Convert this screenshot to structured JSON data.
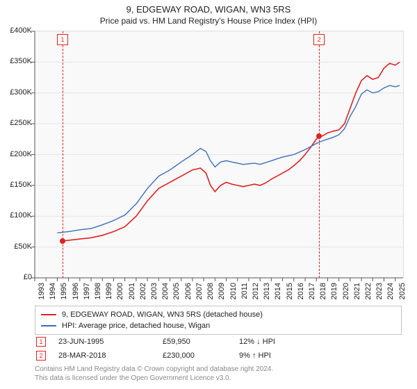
{
  "title": "9, EDGEWAY ROAD, WIGAN, WN3 5RS",
  "subtitle": "Price paid vs. HM Land Registry's House Price Index (HPI)",
  "chart": {
    "type": "line",
    "background_color": "#f9f9f9",
    "grid_color": "#e6e6e6",
    "axis_color": "#555555",
    "x": {
      "min": 1993,
      "max": 2025.7,
      "ticks": [
        1993,
        1994,
        1995,
        1996,
        1997,
        1998,
        1999,
        2000,
        2001,
        2002,
        2003,
        2004,
        2005,
        2006,
        2007,
        2008,
        2009,
        2010,
        2011,
        2012,
        2013,
        2014,
        2015,
        2016,
        2017,
        2018,
        2019,
        2020,
        2021,
        2022,
        2023,
        2024,
        2025
      ],
      "tick_labels": [
        "1993",
        "1994",
        "1995",
        "1996",
        "1997",
        "1998",
        "1999",
        "2000",
        "2001",
        "2002",
        "2003",
        "2004",
        "2005",
        "2006",
        "2007",
        "2008",
        "2009",
        "2010",
        "2011",
        "2012",
        "2013",
        "2014",
        "2015",
        "2016",
        "2017",
        "2018",
        "2019",
        "2020",
        "2021",
        "2022",
        "2023",
        "2024",
        "2025"
      ],
      "label_fontsize": 11
    },
    "y": {
      "min": 0,
      "max": 400000,
      "ticks": [
        0,
        50000,
        100000,
        150000,
        200000,
        250000,
        300000,
        350000,
        400000
      ],
      "tick_labels": [
        "£0",
        "£50K",
        "£100K",
        "£150K",
        "£200K",
        "£250K",
        "£300K",
        "£350K",
        "£400K"
      ],
      "label_fontsize": 11
    },
    "series": [
      {
        "name": "9, EDGEWAY ROAD, WIGAN, WN3 5RS (detached house)",
        "color": "#e02020",
        "line_width": 1.6,
        "points": [
          [
            1995.47,
            59950
          ],
          [
            1996,
            61000
          ],
          [
            1997,
            63000
          ],
          [
            1998,
            65000
          ],
          [
            1999,
            69000
          ],
          [
            2000,
            75000
          ],
          [
            2001,
            83000
          ],
          [
            2002,
            100000
          ],
          [
            2003,
            125000
          ],
          [
            2004,
            145000
          ],
          [
            2005,
            155000
          ],
          [
            2006,
            165000
          ],
          [
            2007,
            175000
          ],
          [
            2007.7,
            178000
          ],
          [
            2008.2,
            170000
          ],
          [
            2008.6,
            150000
          ],
          [
            2009,
            140000
          ],
          [
            2009.5,
            150000
          ],
          [
            2010,
            155000
          ],
          [
            2010.5,
            152000
          ],
          [
            2011,
            150000
          ],
          [
            2011.5,
            148000
          ],
          [
            2012,
            150000
          ],
          [
            2012.5,
            152000
          ],
          [
            2013,
            150000
          ],
          [
            2013.5,
            154000
          ],
          [
            2014,
            160000
          ],
          [
            2014.5,
            165000
          ],
          [
            2015,
            170000
          ],
          [
            2015.5,
            175000
          ],
          [
            2016,
            182000
          ],
          [
            2016.5,
            190000
          ],
          [
            2017,
            200000
          ],
          [
            2017.5,
            212000
          ],
          [
            2018,
            225000
          ],
          [
            2018.24,
            230000
          ],
          [
            2018.5,
            230000
          ],
          [
            2019,
            235000
          ],
          [
            2019.5,
            238000
          ],
          [
            2020,
            240000
          ],
          [
            2020.5,
            250000
          ],
          [
            2021,
            275000
          ],
          [
            2021.5,
            300000
          ],
          [
            2022,
            320000
          ],
          [
            2022.5,
            328000
          ],
          [
            2023,
            322000
          ],
          [
            2023.5,
            325000
          ],
          [
            2024,
            340000
          ],
          [
            2024.5,
            348000
          ],
          [
            2025,
            345000
          ],
          [
            2025.4,
            350000
          ]
        ]
      },
      {
        "name": "HPI: Average price, detached house, Wigan",
        "color": "#3b6fb6",
        "line_width": 1.4,
        "points": [
          [
            1995,
            73000
          ],
          [
            1996,
            75000
          ],
          [
            1997,
            78000
          ],
          [
            1998,
            80000
          ],
          [
            1999,
            86000
          ],
          [
            2000,
            93000
          ],
          [
            2001,
            102000
          ],
          [
            2002,
            120000
          ],
          [
            2003,
            145000
          ],
          [
            2004,
            165000
          ],
          [
            2005,
            175000
          ],
          [
            2006,
            188000
          ],
          [
            2007,
            200000
          ],
          [
            2007.7,
            210000
          ],
          [
            2008.2,
            205000
          ],
          [
            2008.6,
            190000
          ],
          [
            2009,
            180000
          ],
          [
            2009.5,
            188000
          ],
          [
            2010,
            190000
          ],
          [
            2010.5,
            188000
          ],
          [
            2011,
            186000
          ],
          [
            2011.5,
            184000
          ],
          [
            2012,
            185000
          ],
          [
            2012.5,
            186000
          ],
          [
            2013,
            184000
          ],
          [
            2013.5,
            187000
          ],
          [
            2014,
            190000
          ],
          [
            2014.5,
            193000
          ],
          [
            2015,
            196000
          ],
          [
            2015.5,
            198000
          ],
          [
            2016,
            200000
          ],
          [
            2016.5,
            204000
          ],
          [
            2017,
            208000
          ],
          [
            2017.5,
            213000
          ],
          [
            2018,
            218000
          ],
          [
            2018.5,
            222000
          ],
          [
            2019,
            225000
          ],
          [
            2019.5,
            228000
          ],
          [
            2020,
            232000
          ],
          [
            2020.5,
            242000
          ],
          [
            2021,
            262000
          ],
          [
            2021.5,
            278000
          ],
          [
            2022,
            298000
          ],
          [
            2022.5,
            305000
          ],
          [
            2023,
            300000
          ],
          [
            2023.5,
            302000
          ],
          [
            2024,
            308000
          ],
          [
            2024.5,
            312000
          ],
          [
            2025,
            310000
          ],
          [
            2025.4,
            312000
          ]
        ]
      }
    ],
    "sale_markers": [
      {
        "n": "1",
        "year": 1995.47,
        "price": 59950
      },
      {
        "n": "2",
        "year": 2018.24,
        "price": 230000
      }
    ]
  },
  "legend": {
    "items": [
      {
        "label": "9, EDGEWAY ROAD, WIGAN, WN3 5RS (detached house)",
        "color": "#e02020"
      },
      {
        "label": "HPI: Average price, detached house, Wigan",
        "color": "#3b6fb6"
      }
    ]
  },
  "sales": [
    {
      "n": "1",
      "date": "23-JUN-1995",
      "price": "£59,950",
      "diff": "12% ↓ HPI",
      "color": "#e02020"
    },
    {
      "n": "2",
      "date": "28-MAR-2018",
      "price": "£230,000",
      "diff": "9% ↑ HPI",
      "color": "#e02020"
    }
  ],
  "footer": {
    "line1": "Contains HM Land Registry data © Crown copyright and database right 2024.",
    "line2": "This data is licensed under the Open Government Licence v3.0."
  }
}
